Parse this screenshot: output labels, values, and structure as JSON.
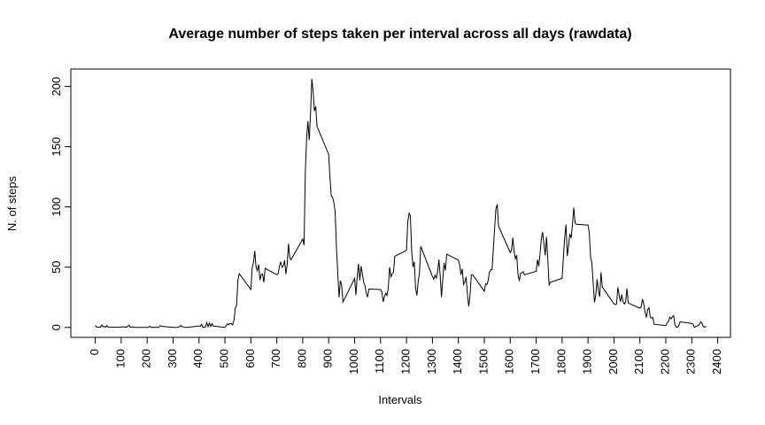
{
  "chart_data": {
    "type": "line",
    "title": "Average number of steps taken per interval across all days (rawdata)",
    "x_label": "Intervals",
    "y_label": "N. of steps",
    "x": [
      0,
      5,
      10,
      15,
      20,
      25,
      30,
      35,
      40,
      45,
      50,
      55,
      100,
      105,
      110,
      115,
      120,
      125,
      130,
      135,
      140,
      145,
      150,
      155,
      200,
      205,
      210,
      215,
      220,
      225,
      230,
      235,
      240,
      245,
      250,
      255,
      300,
      305,
      310,
      315,
      320,
      325,
      330,
      335,
      340,
      345,
      350,
      355,
      400,
      405,
      410,
      415,
      420,
      425,
      430,
      435,
      440,
      445,
      450,
      455,
      500,
      505,
      510,
      515,
      520,
      525,
      530,
      535,
      540,
      545,
      550,
      555,
      600,
      605,
      610,
      615,
      620,
      625,
      630,
      635,
      640,
      645,
      650,
      655,
      700,
      705,
      710,
      715,
      720,
      725,
      730,
      735,
      740,
      745,
      750,
      755,
      800,
      805,
      810,
      815,
      820,
      825,
      830,
      835,
      840,
      845,
      850,
      855,
      900,
      905,
      910,
      915,
      920,
      925,
      930,
      935,
      940,
      945,
      950,
      955,
      1000,
      1005,
      1010,
      1015,
      1020,
      1025,
      1030,
      1035,
      1040,
      1045,
      1050,
      1055,
      1100,
      1105,
      1110,
      1115,
      1120,
      1125,
      1130,
      1135,
      1140,
      1145,
      1150,
      1155,
      1200,
      1205,
      1210,
      1215,
      1220,
      1225,
      1230,
      1235,
      1240,
      1245,
      1250,
      1255,
      1300,
      1305,
      1310,
      1315,
      1320,
      1325,
      1330,
      1335,
      1340,
      1345,
      1350,
      1355,
      1400,
      1405,
      1410,
      1415,
      1420,
      1425,
      1430,
      1435,
      1440,
      1445,
      1450,
      1455,
      1500,
      1505,
      1510,
      1515,
      1520,
      1525,
      1530,
      1535,
      1540,
      1545,
      1550,
      1555,
      1600,
      1605,
      1610,
      1615,
      1620,
      1625,
      1630,
      1635,
      1640,
      1645,
      1650,
      1655,
      1700,
      1705,
      1710,
      1715,
      1720,
      1725,
      1730,
      1735,
      1740,
      1745,
      1750,
      1755,
      1800,
      1805,
      1810,
      1815,
      1820,
      1825,
      1830,
      1835,
      1840,
      1845,
      1850,
      1855,
      1900,
      1905,
      1910,
      1915,
      1920,
      1925,
      1930,
      1935,
      1940,
      1945,
      1950,
      1955,
      2000,
      2005,
      2010,
      2015,
      2020,
      2025,
      2030,
      2035,
      2040,
      2045,
      2050,
      2055,
      2100,
      2105,
      2110,
      2115,
      2120,
      2125,
      2130,
      2135,
      2140,
      2145,
      2150,
      2155,
      2200,
      2205,
      2210,
      2215,
      2220,
      2225,
      2230,
      2235,
      2240,
      2245,
      2250,
      2255,
      2300,
      2305,
      2310,
      2315,
      2320,
      2325,
      2330,
      2335,
      2340,
      2345,
      2350,
      2355
    ],
    "values": [
      1.7,
      0.3,
      0.1,
      0.2,
      0.1,
      2.1,
      0.5,
      0.9,
      0,
      1.5,
      0.3,
      0.1,
      0.3,
      0.7,
      0.2,
      0.3,
      0,
      1.1,
      1.8,
      0.2,
      0.2,
      0.4,
      0.3,
      0,
      0,
      0,
      1.1,
      0,
      0,
      0.1,
      0,
      0.2,
      0,
      0,
      1.5,
      0.9,
      0,
      0,
      0,
      0,
      0.2,
      0.6,
      1.6,
      0.6,
      0.5,
      0.1,
      0,
      0,
      1.2,
      0.9,
      2.6,
      0,
      0.3,
      0.4,
      4.1,
      0.7,
      3.5,
      0.8,
      3.1,
      1.1,
      0,
      1.6,
      3,
      2.2,
      3.3,
      3,
      2.1,
      6.1,
      16,
      18.3,
      39.5,
      44.5,
      31.5,
      49.3,
      53.8,
      63.5,
      50,
      47.1,
      52.2,
      39.3,
      44,
      44.2,
      37.4,
      49,
      43.8,
      44.4,
      50.5,
      54.5,
      49.9,
      51,
      55.7,
      44.3,
      52.3,
      69.5,
      57.8,
      56.2,
      73.4,
      68.2,
      129.4,
      157.5,
      171.2,
      155.4,
      177.3,
      206.2,
      195.9,
      179.6,
      183.4,
      167,
      143.5,
      124,
      109.1,
      108.1,
      103.7,
      96,
      66.2,
      45.2,
      24.8,
      38.8,
      35,
      21.1,
      40.6,
      27,
      42.4,
      52.7,
      38.9,
      50.8,
      44.3,
      37.4,
      34.7,
      28.3,
      25.1,
      31.9,
      31.4,
      29.7,
      21.3,
      25.5,
      28.4,
      26.5,
      33.4,
      50,
      42,
      44.6,
      46,
      59,
      63.9,
      87.7,
      94.8,
      92.8,
      63.4,
      50.2,
      54.5,
      32.4,
      26.5,
      37.7,
      45.1,
      67.3,
      42.3,
      39.9,
      43.3,
      41,
      46.2,
      56.4,
      42.8,
      25.1,
      40,
      53.5,
      47.3,
      60.8,
      55.8,
      52,
      43.6,
      48.7,
      35.5,
      37.6,
      42,
      27.5,
      17.4,
      26.1,
      43.6,
      43.8,
      30,
      36.1,
      35.5,
      38.8,
      46,
      47.8,
      48.1,
      65.3,
      82.9,
      98.7,
      102.1,
      84,
      62.1,
      64.1,
      74.5,
      63.2,
      56.9,
      59.8,
      43.9,
      38.6,
      44.7,
      45.5,
      46.2,
      43.7,
      46.6,
      56.3,
      50.7,
      61.2,
      73.4,
      79.1,
      68.9,
      59.7,
      75.1,
      56.5,
      34.8,
      37.5,
      40.7,
      58,
      74.7,
      85.3,
      59.3,
      67.8,
      77.7,
      74.2,
      85.3,
      99.5,
      86.6,
      85.6,
      84.9,
      77.8,
      58,
      53.4,
      36.3,
      20.7,
      27.4,
      40,
      30.2,
      25.5,
      45.7,
      33.5,
      19.6,
      19,
      19.3,
      33.3,
      26.8,
      21.2,
      27.3,
      21.3,
      19.5,
      21.3,
      32.3,
      20.2,
      15.9,
      17.2,
      23.5,
      19.2,
      12.5,
      8.2,
      14.7,
      16.3,
      8.7,
      7.8,
      8.1,
      2.6,
      1.5,
      3.7,
      4.8,
      8.5,
      7.1,
      8.7,
      9.8,
      2.2,
      0.3,
      0.1,
      1.6,
      4.6,
      3.3,
      2.8,
      0,
      0.8,
      1,
      1.6,
      2.6,
      4.7,
      3.3,
      0.6,
      0.2,
      1.1
    ],
    "color": "#000000",
    "xlim": [
      -94.2,
      2449.2
    ],
    "ylim": [
      -8.25,
      214.4
    ],
    "xticks": [
      0,
      100,
      200,
      300,
      400,
      500,
      600,
      700,
      800,
      900,
      1000,
      1100,
      1200,
      1300,
      1400,
      1500,
      1600,
      1700,
      1800,
      1900,
      2000,
      2100,
      2200,
      2300,
      2400
    ],
    "yticks": [
      0,
      50,
      100,
      150,
      200
    ],
    "grid": false
  }
}
